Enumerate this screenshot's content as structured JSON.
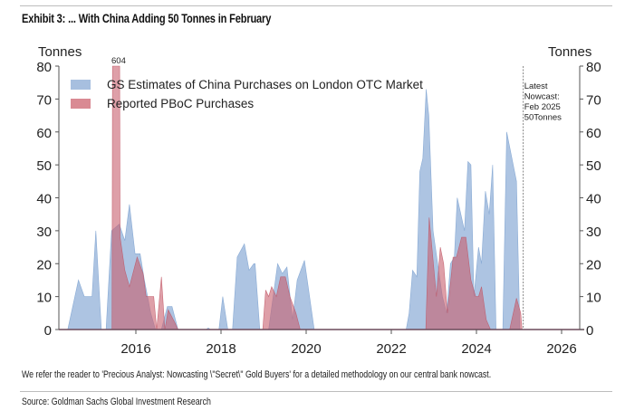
{
  "header": {
    "title": "Exhibit 3: ... With China Adding 50 Tonnes in February"
  },
  "footer": {
    "note": "We refer the reader to 'Precious Analyst: Nowcasting \\\"Secret\\\" Gold Buyers' for a detailed methodology on our central bank nowcast.",
    "source": "Source: Goldman Sachs Global Investment Research"
  },
  "chart_data": {
    "type": "area",
    "ylabel_left": "Tonnes",
    "ylabel_right": "Tonnes",
    "ylim": [
      0,
      80
    ],
    "xlim": [
      2014.2,
      2026.5
    ],
    "yticks": [
      0,
      10,
      20,
      30,
      40,
      50,
      60,
      70,
      80
    ],
    "xticks": [
      2016,
      2018,
      2020,
      2022,
      2024,
      2026
    ],
    "legend_placement": "top-left",
    "annotations": {
      "bar_label": "604",
      "nowcast_x": 2025.1,
      "nowcast_lines": [
        "Latest",
        "Nowcast:",
        "Feb 2025",
        "50Tonnes"
      ]
    },
    "series": [
      {
        "name": "GS Estimates of China Purchases on London OTC Market",
        "color": "#a7bfdf",
        "points": [
          [
            2014.4,
            0
          ],
          [
            2014.65,
            15
          ],
          [
            2014.79,
            10
          ],
          [
            2014.97,
            10
          ],
          [
            2015.06,
            30
          ],
          [
            2015.19,
            0
          ],
          [
            2015.3,
            0
          ],
          [
            2015.43,
            30
          ],
          [
            2015.61,
            32
          ],
          [
            2015.74,
            27
          ],
          [
            2015.85,
            38
          ],
          [
            2015.98,
            23
          ],
          [
            2016.1,
            23
          ],
          [
            2016.2,
            15
          ],
          [
            2016.35,
            5
          ],
          [
            2016.46,
            0
          ],
          [
            2016.6,
            0
          ],
          [
            2016.74,
            7
          ],
          [
            2016.85,
            7
          ],
          [
            2016.99,
            0
          ],
          [
            2017.65,
            0
          ],
          [
            2017.7,
            0.5
          ],
          [
            2017.75,
            0
          ],
          [
            2017.95,
            0
          ],
          [
            2018.04,
            10
          ],
          [
            2018.16,
            0
          ],
          [
            2018.27,
            0
          ],
          [
            2018.38,
            22
          ],
          [
            2018.55,
            26
          ],
          [
            2018.66,
            18
          ],
          [
            2018.77,
            20
          ],
          [
            2018.8,
            20
          ],
          [
            2018.91,
            0
          ],
          [
            2019.12,
            0
          ],
          [
            2019.33,
            20
          ],
          [
            2019.44,
            17
          ],
          [
            2019.55,
            19
          ],
          [
            2019.68,
            3
          ],
          [
            2019.79,
            15
          ],
          [
            2019.96,
            21
          ],
          [
            2020.19,
            0
          ],
          [
            2022.35,
            0
          ],
          [
            2022.42,
            5
          ],
          [
            2022.5,
            18
          ],
          [
            2022.6,
            16
          ],
          [
            2022.67,
            48
          ],
          [
            2022.74,
            52
          ],
          [
            2022.79,
            65
          ],
          [
            2022.82,
            73
          ],
          [
            2022.88,
            65
          ],
          [
            2022.98,
            30
          ],
          [
            2023.09,
            20
          ],
          [
            2023.2,
            10
          ],
          [
            2023.3,
            5
          ],
          [
            2023.39,
            20
          ],
          [
            2023.48,
            22
          ],
          [
            2023.55,
            40
          ],
          [
            2023.72,
            30
          ],
          [
            2023.8,
            51
          ],
          [
            2023.87,
            50
          ],
          [
            2023.94,
            10
          ],
          [
            2024.05,
            25
          ],
          [
            2024.12,
            20
          ],
          [
            2024.21,
            42
          ],
          [
            2024.3,
            35
          ],
          [
            2024.38,
            50
          ],
          [
            2024.46,
            0
          ],
          [
            2024.62,
            0
          ],
          [
            2024.71,
            60
          ],
          [
            2024.94,
            45
          ],
          [
            2025.02,
            0
          ]
        ]
      },
      {
        "name": "Reported PBoC Purchases",
        "color": "#d98a93",
        "points": [
          [
            2015.44,
            0
          ],
          [
            2015.45,
            80
          ],
          [
            2015.62,
            80
          ],
          [
            2015.63,
            28
          ],
          [
            2015.74,
            18
          ],
          [
            2015.85,
            13
          ],
          [
            2016.03,
            22
          ],
          [
            2016.17,
            17
          ],
          [
            2016.24,
            10
          ],
          [
            2016.42,
            10
          ],
          [
            2016.49,
            0
          ],
          [
            2016.6,
            16
          ],
          [
            2016.68,
            0
          ],
          [
            2016.76,
            6
          ],
          [
            2016.92,
            2
          ],
          [
            2016.99,
            0
          ],
          [
            2018.98,
            0
          ],
          [
            2019.05,
            12
          ],
          [
            2019.12,
            10
          ],
          [
            2019.19,
            13
          ],
          [
            2019.3,
            10
          ],
          [
            2019.4,
            16
          ],
          [
            2019.51,
            16
          ],
          [
            2019.62,
            10
          ],
          [
            2019.76,
            5
          ],
          [
            2019.86,
            0
          ],
          [
            2022.81,
            0
          ],
          [
            2022.89,
            34
          ],
          [
            2023.06,
            10
          ],
          [
            2023.15,
            25
          ],
          [
            2023.23,
            20
          ],
          [
            2023.32,
            5
          ],
          [
            2023.45,
            22
          ],
          [
            2023.53,
            22
          ],
          [
            2023.65,
            28
          ],
          [
            2023.75,
            28
          ],
          [
            2023.87,
            15
          ],
          [
            2023.98,
            10
          ],
          [
            2024.05,
            10
          ],
          [
            2024.12,
            13
          ],
          [
            2024.23,
            3
          ],
          [
            2024.33,
            0
          ],
          [
            2024.78,
            0
          ],
          [
            2024.94,
            9.5
          ],
          [
            2025.04,
            5
          ],
          [
            2025.07,
            0
          ]
        ]
      }
    ]
  }
}
